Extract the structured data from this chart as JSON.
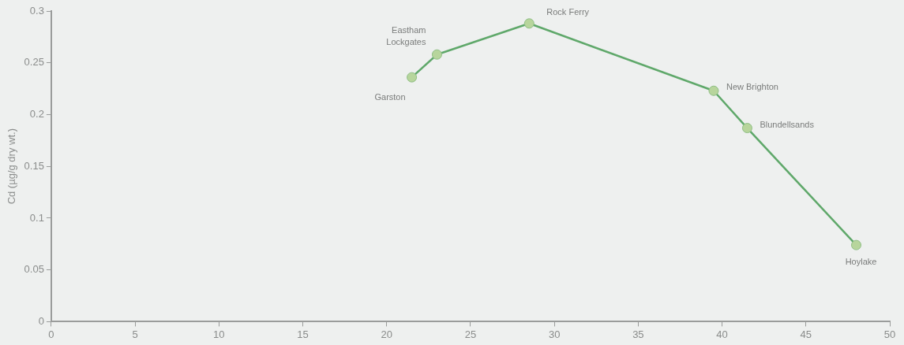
{
  "chart_data": {
    "type": "line",
    "ylabel": "Cd (µg/g dry wt.)",
    "x": [
      21.5,
      23,
      28.5,
      39.5,
      41.5,
      48
    ],
    "series": [
      {
        "color": "#5fa86a",
        "values": [
          0.236,
          0.258,
          0.288,
          0.223,
          0.187,
          0.074
        ]
      }
    ],
    "xlim": [
      0,
      50
    ],
    "xticks": [
      0,
      5,
      10,
      15,
      20,
      25,
      30,
      35,
      40,
      45,
      50
    ],
    "ylim": [
      0,
      0.3
    ],
    "yticks": [
      0,
      0.05,
      0.1,
      0.15,
      0.2,
      0.25,
      0.3
    ],
    "grid": false,
    "legend": false,
    "marker": "circle",
    "line_style": "solid",
    "annotations": [
      {
        "text": "Garston",
        "x": 21.5,
        "y": 0.236
      },
      {
        "text": "Eastham Lockgates",
        "x": 23,
        "y": 0.258
      },
      {
        "text": "Rock Ferry",
        "x": 28.5,
        "y": 0.288
      },
      {
        "text": "New Brighton",
        "x": 39.5,
        "y": 0.223
      },
      {
        "text": "Blundellsands",
        "x": 41.5,
        "y": 0.187
      },
      {
        "text": "Hoylake",
        "x": 48,
        "y": 0.074
      }
    ]
  }
}
